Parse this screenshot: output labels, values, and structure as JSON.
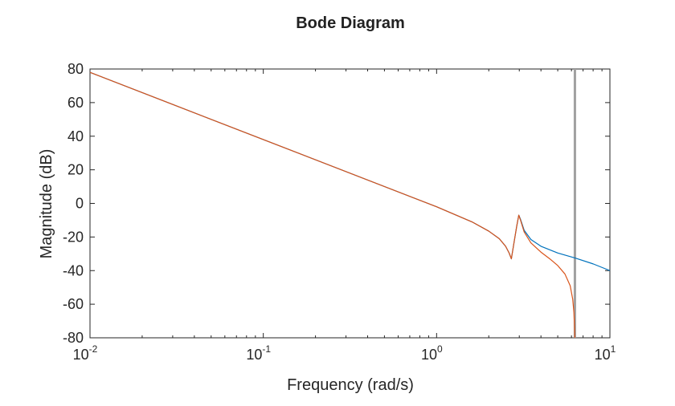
{
  "chart_data": {
    "type": "line",
    "title": "Bode Diagram",
    "xlabel": "Frequency (rad/s)",
    "ylabel": "Magnitude (dB)",
    "xscale": "log",
    "xlim": [
      0.01,
      10
    ],
    "ylim": [
      -80,
      80
    ],
    "grid": false,
    "legend": "none",
    "xticks": [
      {
        "value": 0.01,
        "base": "10",
        "exp": "-2"
      },
      {
        "value": 0.1,
        "base": "10",
        "exp": "-1"
      },
      {
        "value": 1,
        "base": "10",
        "exp": "0"
      },
      {
        "value": 10,
        "base": "10",
        "exp": "1"
      }
    ],
    "yticks": [
      "80",
      "60",
      "40",
      "20",
      "0",
      "-20",
      "-40",
      "-60",
      "-80"
    ],
    "series": [
      {
        "color": "#0072BD",
        "x": [
          0.01,
          0.1,
          1.0,
          1.6,
          2.0,
          2.3,
          2.5,
          2.62,
          2.7,
          2.8,
          2.9,
          2.98,
          3.05,
          3.2,
          3.5,
          4.0,
          5.0,
          6.3,
          8.0,
          10.0
        ],
        "y": [
          78.0,
          38.0,
          -2.0,
          -11.0,
          -16.5,
          -21.0,
          -25.5,
          -29.5,
          -33.0,
          -23.0,
          -13.5,
          -7.0,
          -9.5,
          -16.0,
          -21.5,
          -25.5,
          -29.5,
          -32.5,
          -36.0,
          -40.0
        ]
      },
      {
        "color": "#D95319",
        "x": [
          0.01,
          0.1,
          1.0,
          1.6,
          2.0,
          2.3,
          2.5,
          2.62,
          2.7,
          2.8,
          2.9,
          2.98,
          3.05,
          3.2,
          3.5,
          4.0,
          4.5,
          5.0,
          5.5,
          5.9,
          6.1,
          6.2,
          6.25,
          6.27
        ],
        "y": [
          78.0,
          38.0,
          -2.0,
          -11.0,
          -16.5,
          -21.0,
          -25.5,
          -29.5,
          -33.0,
          -23.0,
          -13.5,
          -7.0,
          -10.0,
          -17.0,
          -23.5,
          -29.0,
          -33.0,
          -37.0,
          -42.0,
          -49.0,
          -57.0,
          -65.0,
          -74.0,
          -80.0
        ]
      }
    ],
    "vline": {
      "x": 6.28,
      "color": "#A0A0A0"
    }
  }
}
